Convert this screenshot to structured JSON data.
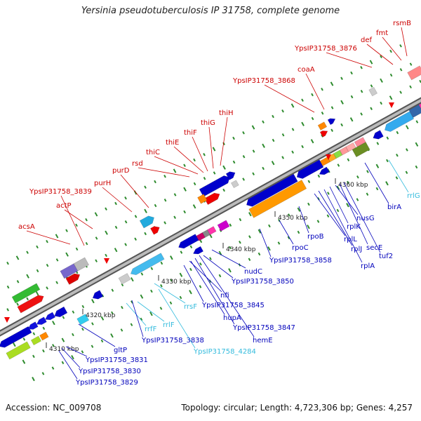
{
  "title": "Yersinia pseudotuberculosis IP 31758, complete genome",
  "footer": {
    "accession": "Accession: NC_009708",
    "topology": "Topology: circular; Length: 4,723,306 bp; Genes: 4,257"
  },
  "colors": {
    "forward_label": "#cc0000",
    "reverse_label": "#0000bb",
    "rna_label": "#33bbdd",
    "backbone": "#999999",
    "tick": "#2e8b2e"
  },
  "scale_labels": [
    "4310 kbp",
    "4320 kbp",
    "4330 kbp",
    "4340 kbp",
    "4350 kbp",
    "4360 kbp"
  ],
  "forward_genes": [
    "acsA",
    "YpsIP31758_3839",
    "actP",
    "purH",
    "purD",
    "rsd",
    "thiC",
    "thiE",
    "thiF",
    "thiG",
    "thiH",
    "YpsIP31758_3868",
    "coaA",
    "YpsIP31758_3876",
    "def",
    "fmt",
    "rsmB"
  ],
  "reverse_genes": [
    "YpsIP31758_3829",
    "YpsIP31758_3830",
    "YpsIP31758_3831",
    "gltP",
    "rrfF",
    "rrlF",
    "YpsIP31758_3838",
    "YpsIP31758_4284",
    "rrsF",
    "YpsIP31758_3845",
    "hupA",
    "YpsIP31758_3847",
    "hemE",
    "nfi",
    "YpsIP31758_3850",
    "nudC",
    "YpsIP31758_3858",
    "rpoC",
    "rpoB",
    "rplL",
    "rplJ",
    "rplA",
    "rplK",
    "nusG",
    "secE",
    "tuf2",
    "birA",
    "rrlG"
  ]
}
